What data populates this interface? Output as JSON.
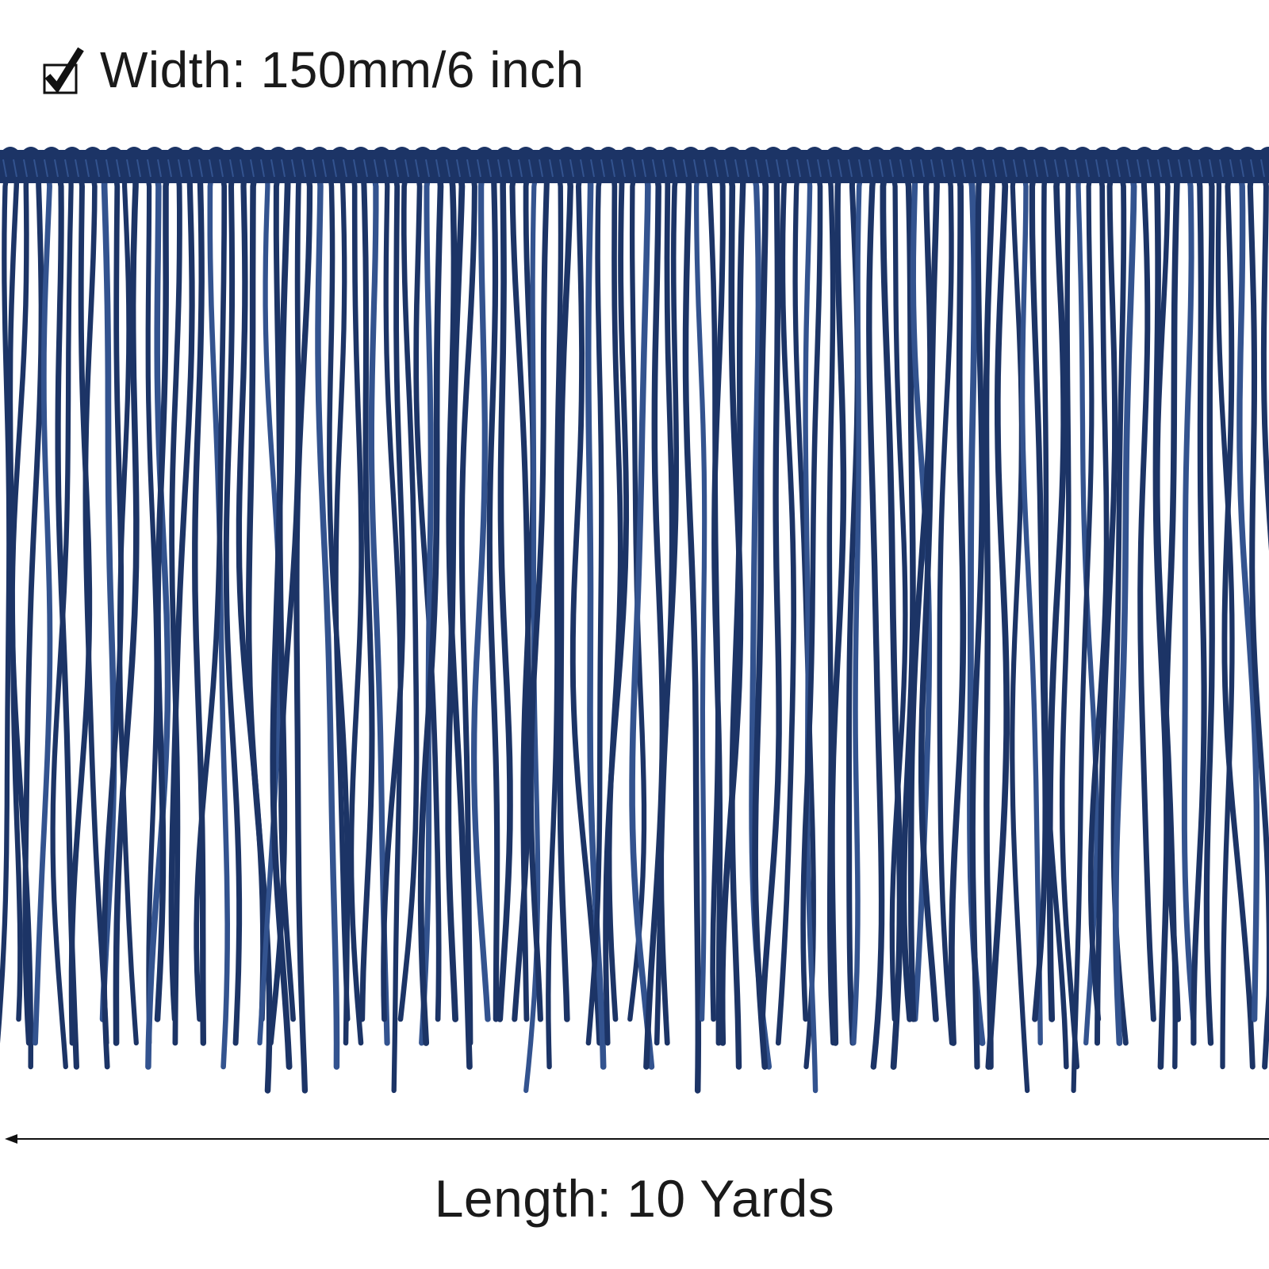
{
  "width_label": "Width: 150mm/6 inch",
  "length_label": "Length: 10 Yards",
  "icons": {
    "width_marker": "checkbox-check-icon",
    "length_marker": "left-arrow-icon"
  },
  "colors": {
    "fringe": "#1c3466",
    "fringe_highlight": "#33538f",
    "text": "#1a1a1a",
    "background": "#ffffff"
  }
}
